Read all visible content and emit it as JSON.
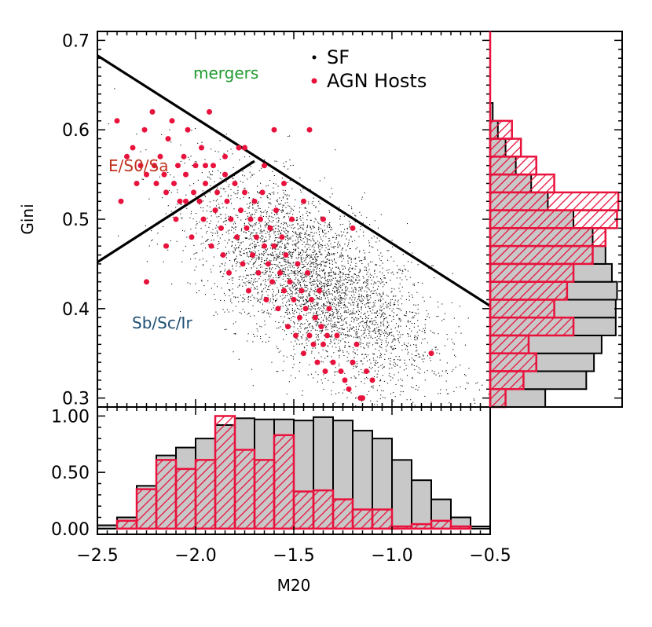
{
  "colors": {
    "sf": "#000000",
    "agn": "#e8123c",
    "sf_hist_fill": "#c8c8c8",
    "mergers_label": "#1f9a2f",
    "early_label": "#c0321e",
    "late_label": "#1d4f73"
  },
  "chart_data": [
    {
      "type": "scatter",
      "title": "",
      "xlabel": "",
      "ylabel": "Gini",
      "xlim": [
        -2.5,
        -0.5
      ],
      "ylim": [
        0.29,
        0.71
      ],
      "yticks": [
        0.3,
        0.4,
        0.5,
        0.6,
        0.7
      ],
      "ytick_labels": [
        "0.3",
        "0.4",
        "0.5",
        "0.6",
        "0.7"
      ],
      "legend": {
        "position": "top-right",
        "entries": [
          {
            "symbol": "•",
            "label": "SF"
          },
          {
            "symbol": "•",
            "label": "AGN Hosts"
          }
        ]
      },
      "region_labels": {
        "mergers": "mergers",
        "early": "E/S0/Sa",
        "late": "Sb/Sc/Ir"
      },
      "boundaries": [
        {
          "name": "merger-line",
          "x": [
            -2.5,
            -0.5
          ],
          "y": [
            0.683,
            0.403
          ]
        },
        {
          "name": "early-late-line",
          "x": [
            -2.5,
            -1.7
          ],
          "y": [
            0.452,
            0.565
          ]
        }
      ],
      "series": [
        {
          "name": "SF",
          "distribution": {
            "count": 4000,
            "center_m20": -1.4,
            "center_gini": 0.43,
            "trend_slope": -0.12,
            "sd_m20": 0.3,
            "sd_gini": 0.045
          }
        },
        {
          "name": "AGN Hosts",
          "points": [
            [
              -2.4,
              0.61
            ],
            [
              -2.38,
              0.52
            ],
            [
              -2.35,
              0.57
            ],
            [
              -2.32,
              0.58
            ],
            [
              -2.3,
              0.54
            ],
            [
              -2.28,
              0.56
            ],
            [
              -2.26,
              0.6
            ],
            [
              -2.25,
              0.55
            ],
            [
              -2.22,
              0.62
            ],
            [
              -2.21,
              0.56
            ],
            [
              -2.2,
              0.54
            ],
            [
              -2.18,
              0.57
            ],
            [
              -2.16,
              0.55
            ],
            [
              -2.15,
              0.53
            ],
            [
              -2.14,
              0.59
            ],
            [
              -2.12,
              0.61
            ],
            [
              -2.11,
              0.54
            ],
            [
              -2.1,
              0.5
            ],
            [
              -2.09,
              0.56
            ],
            [
              -2.08,
              0.52
            ],
            [
              -2.06,
              0.57
            ],
            [
              -2.05,
              0.55
            ],
            [
              -2.04,
              0.6
            ],
            [
              -2.02,
              0.48
            ],
            [
              -2.01,
              0.53
            ],
            [
              -2.0,
              0.56
            ],
            [
              -1.98,
              0.52
            ],
            [
              -1.97,
              0.58
            ],
            [
              -1.96,
              0.5
            ],
            [
              -1.95,
              0.54
            ],
            [
              -1.93,
              0.62
            ],
            [
              -1.92,
              0.47
            ],
            [
              -1.91,
              0.56
            ],
            [
              -1.9,
              0.51
            ],
            [
              -1.89,
              0.53
            ],
            [
              -1.87,
              0.49
            ],
            [
              -1.86,
              0.46
            ],
            [
              -1.85,
              0.55
            ],
            [
              -1.84,
              0.52
            ],
            [
              -1.83,
              0.44
            ],
            [
              -1.82,
              0.5
            ],
            [
              -1.8,
              0.54
            ],
            [
              -1.79,
              0.48
            ],
            [
              -1.78,
              0.58
            ],
            [
              -1.77,
              0.51
            ],
            [
              -1.76,
              0.45
            ],
            [
              -1.75,
              0.53
            ],
            [
              -1.74,
              0.49
            ],
            [
              -1.73,
              0.42
            ],
            [
              -1.72,
              0.5
            ],
            [
              -1.71,
              0.46
            ],
            [
              -1.7,
              0.52
            ],
            [
              -1.69,
              0.48
            ],
            [
              -1.68,
              0.44
            ],
            [
              -1.67,
              0.5
            ],
            [
              -1.66,
              0.53
            ],
            [
              -1.65,
              0.47
            ],
            [
              -1.64,
              0.41
            ],
            [
              -1.63,
              0.45
            ],
            [
              -1.62,
              0.49
            ],
            [
              -1.61,
              0.43
            ],
            [
              -1.6,
              0.47
            ],
            [
              -1.59,
              0.51
            ],
            [
              -1.58,
              0.4
            ],
            [
              -1.57,
              0.44
            ],
            [
              -1.56,
              0.48
            ],
            [
              -1.55,
              0.42
            ],
            [
              -1.54,
              0.46
            ],
            [
              -1.53,
              0.38
            ],
            [
              -1.52,
              0.43
            ],
            [
              -1.51,
              0.5
            ],
            [
              -1.5,
              0.41
            ],
            [
              -1.49,
              0.37
            ],
            [
              -1.48,
              0.45
            ],
            [
              -1.47,
              0.39
            ],
            [
              -1.46,
              0.42
            ],
            [
              -1.45,
              0.35
            ],
            [
              -1.44,
              0.4
            ],
            [
              -1.43,
              0.44
            ],
            [
              -1.42,
              0.37
            ],
            [
              -1.41,
              0.41
            ],
            [
              -1.4,
              0.36
            ],
            [
              -1.39,
              0.39
            ],
            [
              -1.38,
              0.34
            ],
            [
              -1.37,
              0.42
            ],
            [
              -1.36,
              0.38
            ],
            [
              -1.35,
              0.36
            ],
            [
              -1.34,
              0.33
            ],
            [
              -1.33,
              0.37
            ],
            [
              -1.32,
              0.4
            ],
            [
              -1.3,
              0.34
            ],
            [
              -1.28,
              0.37
            ],
            [
              -1.26,
              0.33
            ],
            [
              -1.24,
              0.32
            ],
            [
              -1.22,
              0.31
            ],
            [
              -1.2,
              0.34
            ],
            [
              -1.18,
              0.36
            ],
            [
              -1.15,
              0.3
            ],
            [
              -1.13,
              0.33
            ],
            [
              -1.1,
              0.32
            ],
            [
              -1.6,
              0.6
            ],
            [
              -1.42,
              0.6
            ],
            [
              -1.85,
              0.57
            ],
            [
              -1.95,
              0.56
            ],
            [
              -2.05,
              0.52
            ],
            [
              -2.15,
              0.47
            ],
            [
              -2.25,
              0.43
            ],
            [
              -1.75,
              0.58
            ],
            [
              -1.65,
              0.56
            ],
            [
              -1.55,
              0.54
            ],
            [
              -1.45,
              0.52
            ],
            [
              -1.35,
              0.5
            ],
            [
              -1.2,
              0.49
            ],
            [
              -0.8,
              0.35
            ],
            [
              -1.16,
              0.3
            ]
          ]
        }
      ]
    },
    {
      "type": "bar",
      "orientation": "vertical",
      "title": "",
      "xlabel": "M20",
      "ylabel": "",
      "xlim": [
        -2.5,
        -0.5
      ],
      "ylim": [
        -0.05,
        1.08
      ],
      "xticks": [
        -2.5,
        -2.0,
        -1.5,
        -1.0,
        -0.5
      ],
      "xtick_labels": [
        "−2.5",
        "−2.0",
        "−1.5",
        "−1.0",
        "−0.5"
      ],
      "yticks": [
        0.0,
        0.5,
        1.0
      ],
      "ytick_labels": [
        "0.00",
        "0.50",
        "1.00"
      ],
      "bin_edges": [
        -2.5,
        -2.4,
        -2.3,
        -2.2,
        -2.1,
        -2.0,
        -1.9,
        -1.8,
        -1.7,
        -1.6,
        -1.5,
        -1.4,
        -1.3,
        -1.2,
        -1.1,
        -1.0,
        -0.9,
        -0.8,
        -0.7,
        -0.6,
        -0.5
      ],
      "series": [
        {
          "name": "SF",
          "values": [
            0.03,
            0.1,
            0.38,
            0.65,
            0.72,
            0.8,
            0.92,
            0.98,
            0.97,
            0.97,
            0.96,
            0.99,
            0.96,
            0.87,
            0.8,
            0.61,
            0.43,
            0.26,
            0.1,
            0.02
          ]
        },
        {
          "name": "AGN Hosts",
          "values": [
            0.0,
            0.07,
            0.35,
            0.61,
            0.53,
            0.61,
            1.0,
            0.7,
            0.61,
            0.83,
            0.33,
            0.34,
            0.26,
            0.17,
            0.17,
            0.02,
            0.04,
            0.07,
            0.02,
            0.0
          ]
        }
      ]
    },
    {
      "type": "bar",
      "orientation": "horizontal",
      "title": "",
      "xlabel": "",
      "ylabel": "",
      "xlim": [
        0,
        1.03
      ],
      "ylim": [
        0.29,
        0.71
      ],
      "bin_edges": [
        0.29,
        0.31,
        0.33,
        0.35,
        0.37,
        0.39,
        0.41,
        0.43,
        0.45,
        0.47,
        0.49,
        0.51,
        0.53,
        0.55,
        0.57,
        0.59,
        0.61,
        0.63
      ],
      "series": [
        {
          "name": "SF",
          "values": [
            0.43,
            0.75,
            0.81,
            0.87,
            0.98,
            0.98,
            0.99,
            0.95,
            0.9,
            0.8,
            0.65,
            0.45,
            0.32,
            0.2,
            0.12,
            0.06,
            0.02
          ]
        },
        {
          "name": "AGN Hosts",
          "values": [
            0.12,
            0.26,
            0.36,
            0.3,
            0.65,
            0.5,
            0.6,
            0.65,
            0.8,
            0.9,
            0.99,
            1.0,
            0.5,
            0.36,
            0.24,
            0.17,
            0.0
          ]
        }
      ]
    }
  ]
}
